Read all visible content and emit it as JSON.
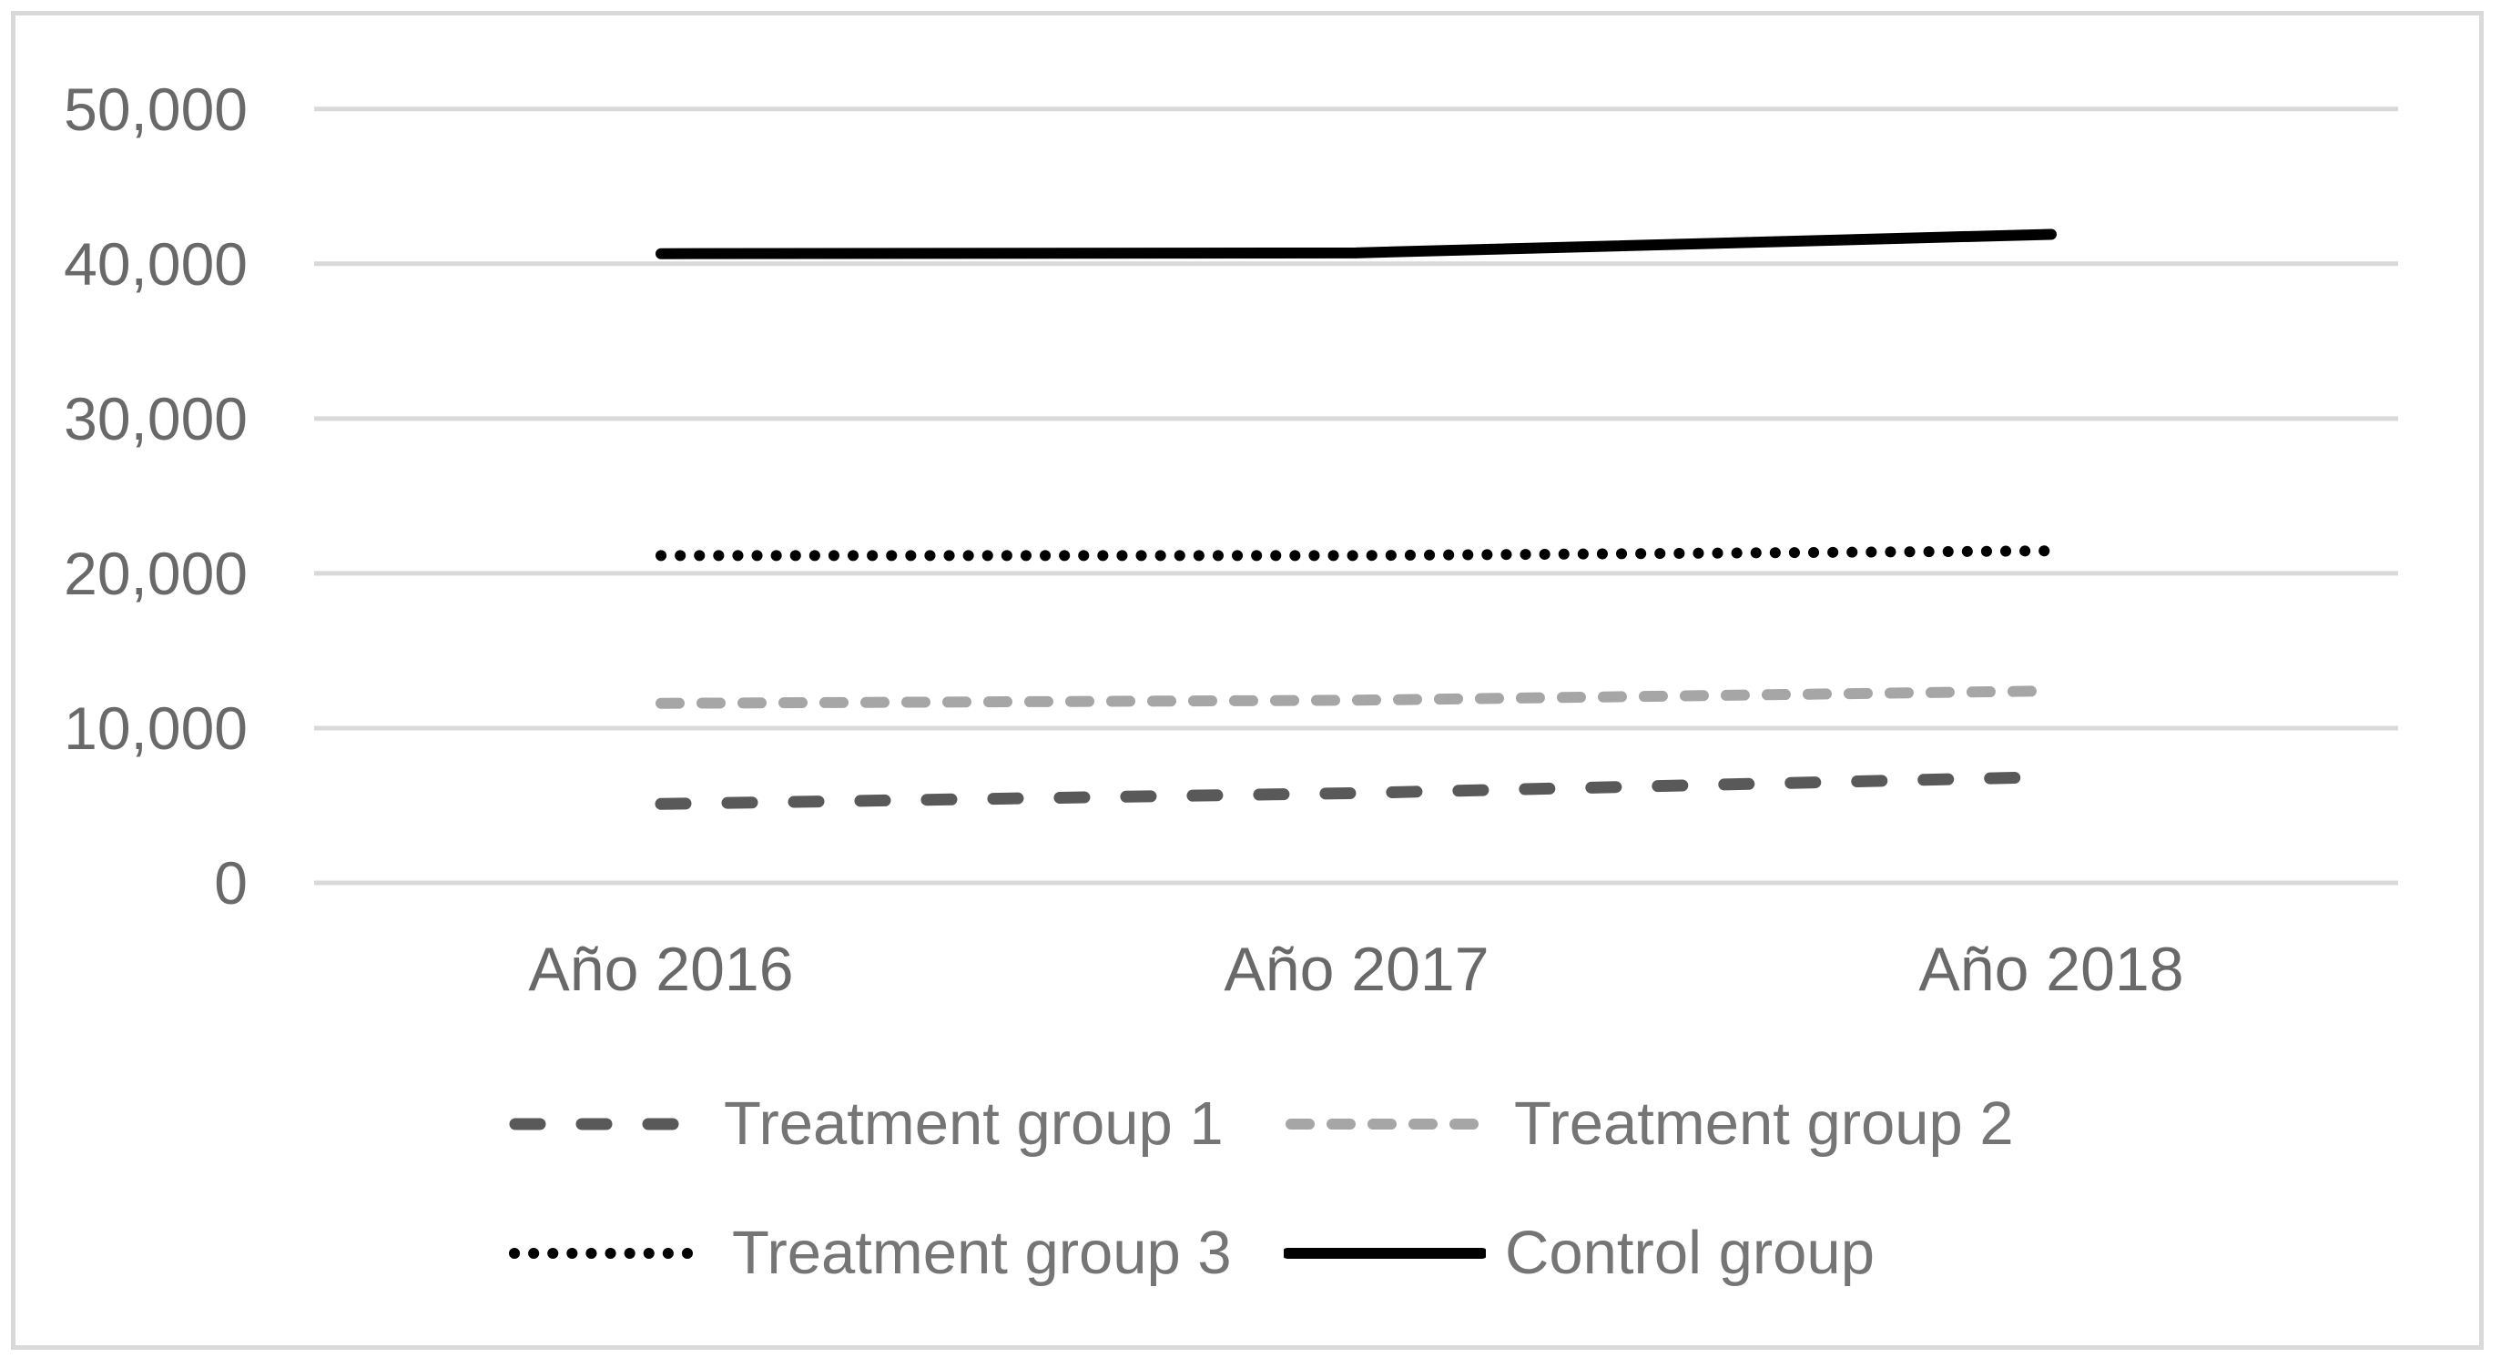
{
  "chart_data": {
    "type": "line",
    "title": "",
    "xlabel": "",
    "ylabel": "",
    "categories": [
      "Año 2016",
      "Año 2017",
      "Año 2018"
    ],
    "series": [
      {
        "name": "Treatment group 1",
        "values": [
          5100,
          5800,
          6850
        ],
        "style": {
          "color": "#595959",
          "width": 13,
          "dash": "27 46",
          "linecap": "round",
          "pattern": "long-dash"
        }
      },
      {
        "name": "Treatment group 2",
        "values": [
          11600,
          11800,
          12400
        ],
        "style": {
          "color": "#A6A6A6",
          "width": 12,
          "dash": "20 25",
          "linecap": "round",
          "pattern": "short-dash"
        }
      },
      {
        "name": "Treatment group 3",
        "values": [
          21150,
          21150,
          21450
        ],
        "style": {
          "color": "#000000",
          "width": 12,
          "dash": "0.1 21",
          "linecap": "round",
          "pattern": "dotted"
        }
      },
      {
        "name": "Control group",
        "values": [
          40650,
          40700,
          41900
        ],
        "style": {
          "color": "#000000",
          "width": 12,
          "dash": "",
          "linecap": "round",
          "pattern": "solid"
        }
      }
    ],
    "y_ticks": [
      "0",
      "10,000",
      "20,000",
      "30,000",
      "40,000",
      "50,000"
    ],
    "y_tick_values": [
      0,
      10000,
      20000,
      30000,
      40000,
      50000
    ],
    "ylim": [
      0,
      50000
    ],
    "grid": true,
    "gridline_color": "#D9D9D9",
    "frame_color": "#D9D9D9",
    "tick_text_color": "#696969",
    "legend_text_color": "#757575",
    "legend_position": "bottom"
  }
}
